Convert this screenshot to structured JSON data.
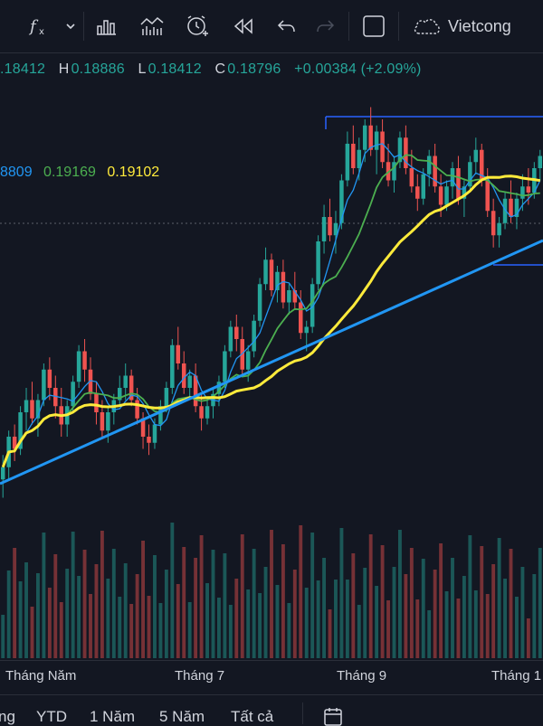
{
  "toolbar": {
    "items": [
      {
        "icon": "function-icon"
      },
      {
        "icon": "chevron-down-icon"
      },
      {
        "icon": "bar-chart-icon"
      },
      {
        "icon": "indicator-chart-icon"
      },
      {
        "icon": "alert-clock-icon"
      },
      {
        "icon": "replay-icon"
      },
      {
        "icon": "undo-icon"
      },
      {
        "icon": "redo-icon"
      },
      {
        "icon": "fullscreen-square-icon"
      }
    ],
    "cloud_label": "Vietcong"
  },
  "ohlc": {
    "open_value": ".18412",
    "high_key": "H",
    "high_value": "0.18886",
    "low_key": "L",
    "low_value": "0.18412",
    "close_key": "C",
    "close_value": "0.18796",
    "change": "+0.00384 (+2.09%)"
  },
  "ma_legend": {
    "ma1": "8809",
    "ma2": "0.19169",
    "ma3": "0.19102"
  },
  "colors": {
    "up": "#26a69a",
    "down": "#ef5350",
    "ma_blue": "#2196f3",
    "ma_green": "#4caf50",
    "ma_yellow": "#ffeb3b",
    "trendline": "#2196f3"
  },
  "xaxis": {
    "labels": [
      "Tháng Năm",
      "Tháng 7",
      "Tháng 9",
      "Tháng 1"
    ]
  },
  "bottombar": {
    "ranges": [
      "ng",
      "YTD",
      "1 Năm",
      "5 Năm",
      "Tất cả"
    ]
  },
  "chart_data": {
    "type": "candlestick",
    "series": [
      {
        "name": "price",
        "ohlc": [
          [
            0.163,
            0.167,
            0.16,
            0.165
          ],
          [
            0.165,
            0.171,
            0.163,
            0.17
          ],
          [
            0.17,
            0.172,
            0.166,
            0.168
          ],
          [
            0.168,
            0.175,
            0.167,
            0.174
          ],
          [
            0.174,
            0.178,
            0.171,
            0.176
          ],
          [
            0.176,
            0.179,
            0.172,
            0.173
          ],
          [
            0.173,
            0.177,
            0.17,
            0.176
          ],
          [
            0.176,
            0.182,
            0.175,
            0.181
          ],
          [
            0.181,
            0.183,
            0.176,
            0.178
          ],
          [
            0.178,
            0.18,
            0.173,
            0.175
          ],
          [
            0.175,
            0.178,
            0.17,
            0.172
          ],
          [
            0.172,
            0.176,
            0.17,
            0.175
          ],
          [
            0.175,
            0.18,
            0.174,
            0.179
          ],
          [
            0.179,
            0.185,
            0.178,
            0.184
          ],
          [
            0.184,
            0.186,
            0.179,
            0.181
          ],
          [
            0.181,
            0.183,
            0.176,
            0.177
          ],
          [
            0.177,
            0.179,
            0.172,
            0.174
          ],
          [
            0.174,
            0.176,
            0.17,
            0.171
          ],
          [
            0.171,
            0.175,
            0.169,
            0.174
          ],
          [
            0.174,
            0.177,
            0.172,
            0.176
          ],
          [
            0.176,
            0.18,
            0.175,
            0.178
          ],
          [
            0.178,
            0.182,
            0.176,
            0.18
          ],
          [
            0.18,
            0.181,
            0.175,
            0.176
          ],
          [
            0.176,
            0.178,
            0.172,
            0.173
          ],
          [
            0.173,
            0.174,
            0.168,
            0.17
          ],
          [
            0.17,
            0.172,
            0.167,
            0.169
          ],
          [
            0.169,
            0.173,
            0.168,
            0.172
          ],
          [
            0.172,
            0.176,
            0.171,
            0.175
          ],
          [
            0.175,
            0.179,
            0.174,
            0.178
          ],
          [
            0.178,
            0.186,
            0.177,
            0.185
          ],
          [
            0.185,
            0.188,
            0.181,
            0.182
          ],
          [
            0.182,
            0.184,
            0.177,
            0.178
          ],
          [
            0.178,
            0.181,
            0.176,
            0.18
          ],
          [
            0.18,
            0.182,
            0.174,
            0.175
          ],
          [
            0.175,
            0.177,
            0.171,
            0.173
          ],
          [
            0.173,
            0.176,
            0.172,
            0.175
          ],
          [
            0.175,
            0.178,
            0.173,
            0.177
          ],
          [
            0.177,
            0.18,
            0.175,
            0.179
          ],
          [
            0.179,
            0.185,
            0.178,
            0.184
          ],
          [
            0.184,
            0.189,
            0.183,
            0.188
          ],
          [
            0.188,
            0.19,
            0.184,
            0.186
          ],
          [
            0.186,
            0.188,
            0.18,
            0.181
          ],
          [
            0.181,
            0.185,
            0.179,
            0.184
          ],
          [
            0.184,
            0.19,
            0.183,
            0.189
          ],
          [
            0.189,
            0.196,
            0.188,
            0.195
          ],
          [
            0.195,
            0.201,
            0.194,
            0.199
          ],
          [
            0.199,
            0.2,
            0.193,
            0.194
          ],
          [
            0.194,
            0.198,
            0.192,
            0.197
          ],
          [
            0.197,
            0.199,
            0.191,
            0.192
          ],
          [
            0.192,
            0.195,
            0.19,
            0.194
          ],
          [
            0.194,
            0.197,
            0.191,
            0.192
          ],
          [
            0.192,
            0.194,
            0.186,
            0.187
          ],
          [
            0.187,
            0.189,
            0.184,
            0.188
          ],
          [
            0.188,
            0.196,
            0.187,
            0.195
          ],
          [
            0.195,
            0.203,
            0.194,
            0.202
          ],
          [
            0.202,
            0.208,
            0.2,
            0.206
          ],
          [
            0.206,
            0.209,
            0.202,
            0.203
          ],
          [
            0.203,
            0.207,
            0.2,
            0.205
          ],
          [
            0.205,
            0.213,
            0.204,
            0.212
          ],
          [
            0.212,
            0.22,
            0.211,
            0.218
          ],
          [
            0.218,
            0.221,
            0.213,
            0.214
          ],
          [
            0.214,
            0.219,
            0.212,
            0.217
          ],
          [
            0.217,
            0.222,
            0.215,
            0.221
          ],
          [
            0.221,
            0.224,
            0.216,
            0.217
          ],
          [
            0.217,
            0.221,
            0.213,
            0.22
          ],
          [
            0.22,
            0.222,
            0.214,
            0.215
          ],
          [
            0.215,
            0.218,
            0.211,
            0.212
          ],
          [
            0.212,
            0.216,
            0.21,
            0.215
          ],
          [
            0.215,
            0.22,
            0.214,
            0.219
          ],
          [
            0.219,
            0.221,
            0.213,
            0.214
          ],
          [
            0.214,
            0.217,
            0.21,
            0.211
          ],
          [
            0.211,
            0.213,
            0.207,
            0.209
          ],
          [
            0.209,
            0.214,
            0.208,
            0.213
          ],
          [
            0.213,
            0.217,
            0.211,
            0.216
          ],
          [
            0.216,
            0.218,
            0.21,
            0.211
          ],
          [
            0.211,
            0.213,
            0.206,
            0.208
          ],
          [
            0.208,
            0.212,
            0.207,
            0.211
          ],
          [
            0.211,
            0.215,
            0.209,
            0.214
          ],
          [
            0.214,
            0.216,
            0.208,
            0.209
          ],
          [
            0.209,
            0.212,
            0.206,
            0.211
          ],
          [
            0.211,
            0.216,
            0.21,
            0.215
          ],
          [
            0.215,
            0.219,
            0.213,
            0.217
          ],
          [
            0.217,
            0.218,
            0.211,
            0.212
          ],
          [
            0.212,
            0.214,
            0.206,
            0.207
          ],
          [
            0.207,
            0.209,
            0.201,
            0.203
          ],
          [
            0.203,
            0.206,
            0.201,
            0.205
          ],
          [
            0.205,
            0.21,
            0.204,
            0.209
          ],
          [
            0.209,
            0.212,
            0.205,
            0.206
          ],
          [
            0.206,
            0.21,
            0.204,
            0.209
          ],
          [
            0.209,
            0.213,
            0.207,
            0.211
          ],
          [
            0.211,
            0.214,
            0.208,
            0.21
          ],
          [
            0.21,
            0.215,
            0.209,
            0.214
          ],
          [
            0.214,
            0.217,
            0.212,
            0.216
          ]
        ]
      }
    ],
    "ma_lines": [
      "blue",
      "green",
      "yellow"
    ],
    "ylim": [
      0.15,
      0.23
    ]
  }
}
